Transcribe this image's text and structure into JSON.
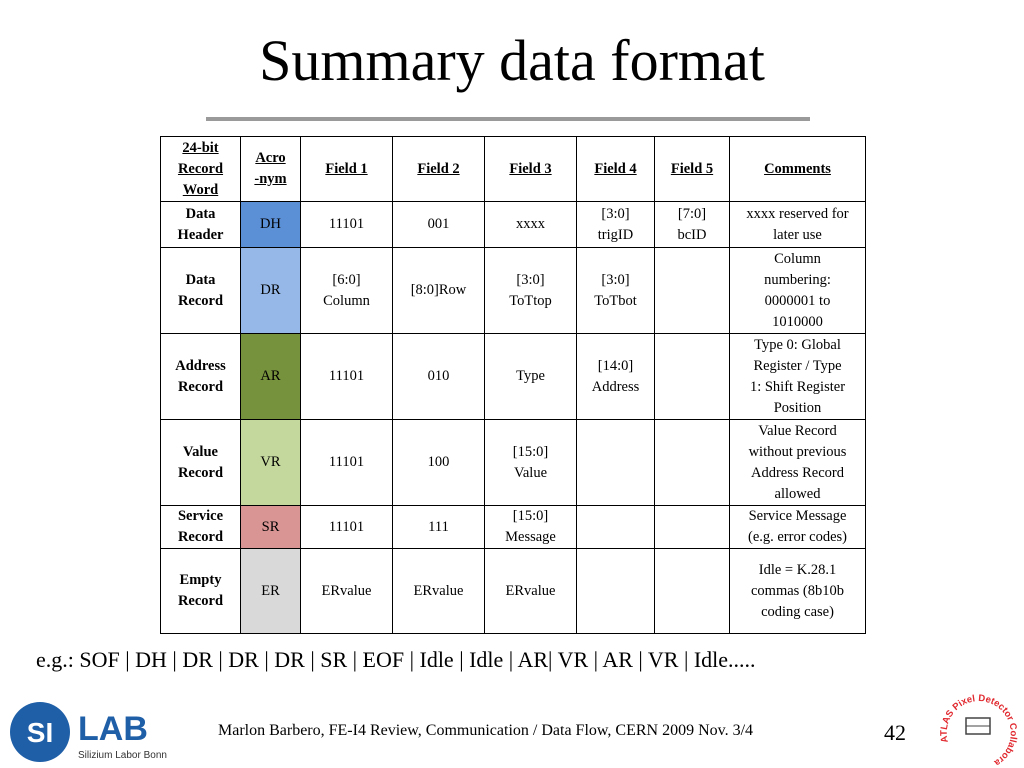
{
  "slide": {
    "title": "Summary data format",
    "example": "e.g.: SOF | DH | DR | DR | DR | SR | EOF | Idle | Idle | AR| VR | AR | VR | Idle.....",
    "footer": "Marlon Barbero, FE-I4 Review, Communication / Data Flow, CERN 2009 Nov. 3/4",
    "page_number": "42"
  },
  "logo": {
    "mark": "SI",
    "word": "LAB",
    "subtitle": "Silizium Labor Bonn",
    "color": "#1f5fa8"
  },
  "atlas": {
    "text": "ATLAS Pixel Detector Collaboration",
    "color": "#e0282e"
  },
  "table": {
    "headers": {
      "record_l1": "24-bit",
      "record_l2": "Record",
      "record_l3": "Word",
      "acro_l1": "Acro",
      "acro_l2": "-nym",
      "f1": "Field 1",
      "f2": "Field 2",
      "f3": "Field 3",
      "f4": "Field 4",
      "f5": "Field 5",
      "comments": "Comments"
    },
    "rows": [
      {
        "name_l1": "Data",
        "name_l2": "Header",
        "acro": "DH",
        "color": "#5b8fd6",
        "f1": "11101",
        "f2": "001",
        "f3": "xxxx",
        "f4_l1": "[3:0]",
        "f4_l2": "trigID",
        "f5_l1": "[7:0]",
        "f5_l2": "bcID",
        "c_l1": "xxxx reserved for",
        "c_l2": "later use"
      },
      {
        "name_l1": "Data",
        "name_l2": "Record",
        "acro": "DR",
        "color": "#95b8e8",
        "f1_l1": "[6:0]",
        "f1_l2": "Column",
        "f2": "[8:0]Row",
        "f3_l1": "[3:0]",
        "f3_l2": "ToTtop",
        "f4_l1": "[3:0]",
        "f4_l2": "ToTbot",
        "c_l1": "Column",
        "c_l2": "numbering:",
        "c_l3": "0000001 to",
        "c_l4": "1010000"
      },
      {
        "name_l1": "Address",
        "name_l2": "Record",
        "acro": "AR",
        "color": "#77923c",
        "f1": "11101",
        "f2": "010",
        "f3": "Type",
        "f4_l1": "[14:0]",
        "f4_l2": "Address",
        "c_l1": "Type 0: Global",
        "c_l2": "Register / Type",
        "c_l3": "1: Shift Register",
        "c_l4": "Position"
      },
      {
        "name_l1": "Value",
        "name_l2": "Record",
        "acro": "VR",
        "color": "#c4d79c",
        "f1": "11101",
        "f2": "100",
        "f3_l1": "[15:0]",
        "f3_l2": "Value",
        "c_l1": "Value Record",
        "c_l2": "without previous",
        "c_l3": "Address Record",
        "c_l4": "allowed"
      },
      {
        "name_l1": "Service",
        "name_l2": "Record",
        "acro": "SR",
        "color": "#d99594",
        "f1": "11101",
        "f2": "111",
        "f3_l1": "[15:0]",
        "f3_l2": "Message",
        "c_l1": "Service Message",
        "c_l2": "(e.g. error codes)"
      },
      {
        "name_l1": "Empty",
        "name_l2": "Record",
        "acro": "ER",
        "color": "#d9d9d9",
        "f1": "ERvalue",
        "f2": "ERvalue",
        "f3": "ERvalue",
        "c_l1": "Idle = K.28.1",
        "c_l2": "commas (8b10b",
        "c_l3": "coding case)"
      }
    ]
  }
}
